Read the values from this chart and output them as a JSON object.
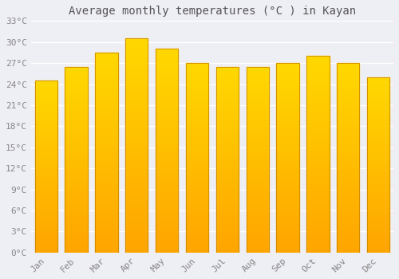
{
  "title": "Average monthly temperatures (°C ) in Kayan",
  "months": [
    "Jan",
    "Feb",
    "Mar",
    "Apr",
    "May",
    "Jun",
    "Jul",
    "Aug",
    "Sep",
    "Oct",
    "Nov",
    "Dec"
  ],
  "values": [
    24.5,
    26.5,
    28.5,
    30.5,
    29.0,
    27.0,
    26.5,
    26.5,
    27.0,
    28.0,
    27.0,
    25.0
  ],
  "bar_color_bottom": "#FFA500",
  "bar_color_top": "#FFD700",
  "bar_edge_color": "#CC8800",
  "background_color": "#eeeef5",
  "plot_bg_color": "#eeeef5",
  "grid_color": "#ffffff",
  "text_color": "#888888",
  "title_color": "#555555",
  "ylim": [
    0,
    33
  ],
  "yticks": [
    0,
    3,
    6,
    9,
    12,
    15,
    18,
    21,
    24,
    27,
    30,
    33
  ],
  "ylabel_suffix": "°C",
  "title_fontsize": 10,
  "tick_fontsize": 8,
  "font_family": "monospace",
  "bar_width": 0.75
}
